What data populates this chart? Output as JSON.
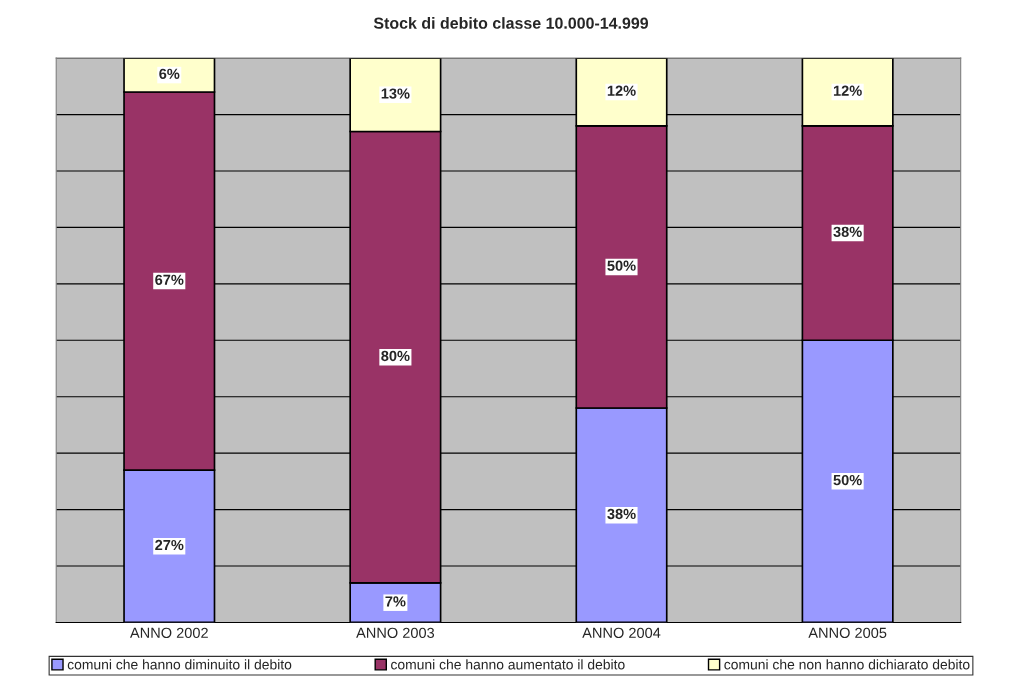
{
  "chart_data": {
    "type": "bar",
    "title": "Stock di debito classe 10.000-14.999",
    "categories": [
      "ANNO 2002",
      "ANNO 2003",
      "ANNO 2004",
      "ANNO 2005"
    ],
    "stacked": true,
    "series": [
      {
        "name": "comuni che hanno diminuito il debito",
        "color": "#9999ff",
        "values": [
          27,
          7,
          38,
          50
        ],
        "value_labels": [
          "27%",
          "7%",
          "38%",
          "50%"
        ]
      },
      {
        "name": "comuni che hanno aumentato il debito",
        "color": "#993366",
        "values": [
          67,
          80,
          50,
          38
        ],
        "value_labels": [
          "67%",
          "80%",
          "50%",
          "38%"
        ]
      },
      {
        "name": "comuni che non hanno dichiarato debito",
        "color": "#ffffcc",
        "values": [
          6,
          13,
          12,
          12
        ],
        "value_labels": [
          "6%",
          "13%",
          "12%",
          "12%"
        ]
      }
    ],
    "ylim": [
      0,
      100
    ],
    "yticks": [
      {
        "value": 0,
        "label": null
      },
      {
        "value": 10,
        "label": null
      },
      {
        "value": 20,
        "label": null
      },
      {
        "value": 30,
        "label": null
      },
      {
        "value": 40,
        "label": null
      },
      {
        "value": 50,
        "label": null
      },
      {
        "value": 60,
        "label": null
      },
      {
        "value": 70,
        "label": null
      },
      {
        "value": 80,
        "label": null
      },
      {
        "value": 90,
        "label": null
      },
      {
        "value": 100,
        "label": null
      }
    ],
    "grid": "y",
    "legend": "bottom",
    "tick_labels": "x"
  }
}
